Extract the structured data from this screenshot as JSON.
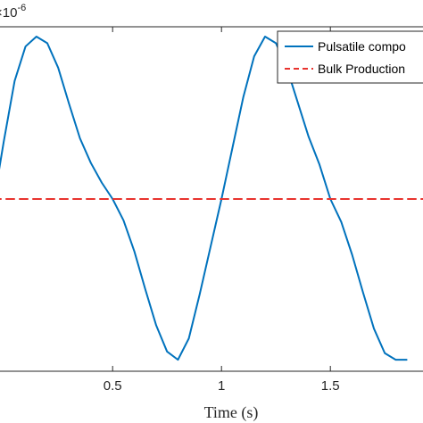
{
  "chart_data": {
    "type": "line",
    "xlabel": "Time (s)",
    "xlim": [
      -0.05,
      1.95
    ],
    "ylim": [
      -1.05,
      1.05
    ],
    "xticks": [
      0.5,
      1,
      1.5
    ],
    "xtick_labels": [
      "0.5",
      "1",
      "1.5"
    ],
    "y_exponent_label": "10",
    "y_exponent_power": "-6",
    "y_exponent_prefix": "×",
    "legend": {
      "position": "top-right",
      "entries": [
        "Pulsatile compo",
        "Bulk Production"
      ]
    },
    "series": [
      {
        "name": "Pulsatile compo",
        "color": "#0072bd",
        "style": "solid",
        "x": [
          -0.05,
          0.0,
          0.05,
          0.1,
          0.15,
          0.2,
          0.25,
          0.3,
          0.35,
          0.4,
          0.45,
          0.5,
          0.55,
          0.6,
          0.65,
          0.7,
          0.75,
          0.8,
          0.85,
          0.9,
          0.95,
          1.0,
          1.05,
          1.1,
          1.15,
          1.2,
          1.25,
          1.3,
          1.35,
          1.4,
          1.45,
          1.5,
          1.55,
          1.6,
          1.65,
          1.7,
          1.75,
          1.8,
          1.85
        ],
        "y": [
          -0.05,
          0.35,
          0.72,
          0.93,
          0.99,
          0.95,
          0.8,
          0.58,
          0.37,
          0.22,
          0.1,
          0.0,
          -0.13,
          -0.32,
          -0.55,
          -0.77,
          -0.93,
          -0.98,
          -0.85,
          -0.58,
          -0.29,
          0.0,
          0.31,
          0.62,
          0.87,
          0.99,
          0.95,
          0.8,
          0.59,
          0.38,
          0.21,
          0.0,
          -0.14,
          -0.34,
          -0.57,
          -0.79,
          -0.94,
          -0.98,
          -0.98
        ]
      },
      {
        "name": "Bulk Production",
        "color": "#e8332e",
        "style": "dashed",
        "x": [
          -0.05,
          1.95
        ],
        "y": [
          0,
          0
        ]
      }
    ]
  }
}
